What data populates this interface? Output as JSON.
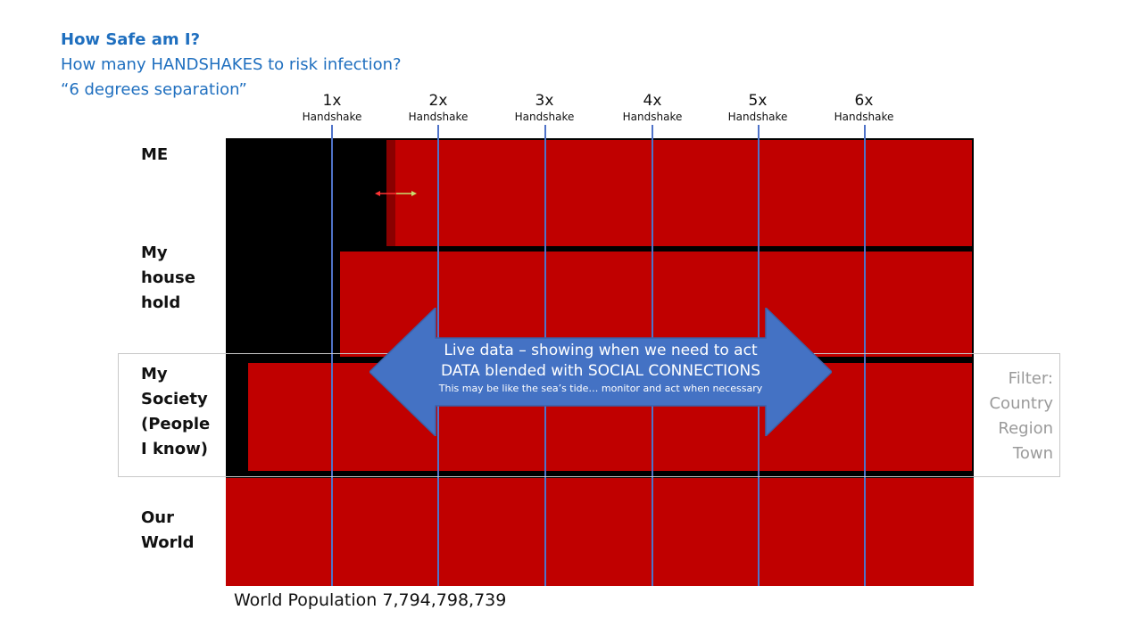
{
  "header": {
    "title": "How Safe am I?",
    "subtitle": "How many HANDSHAKES to risk infection?",
    "tagline": "“6 degrees separation”"
  },
  "columns": [
    {
      "num": "1x",
      "label": "Handshake"
    },
    {
      "num": "2x",
      "label": "Handshake"
    },
    {
      "num": "3x",
      "label": "Handshake"
    },
    {
      "num": "4x",
      "label": "Handshake"
    },
    {
      "num": "5x",
      "label": "Handshake"
    },
    {
      "num": "6x",
      "label": "Handshake"
    }
  ],
  "rows": {
    "me": [
      "ME"
    ],
    "household": [
      "My",
      "house",
      "hold"
    ],
    "society": [
      "My",
      "Society",
      "(People",
      "I know)"
    ],
    "world": [
      "Our",
      "World"
    ]
  },
  "arrow": {
    "line1": "Live data – showing when we need to act",
    "line2": "DATA blended with SOCIAL CONNECTIONS",
    "line3": "This may be like the sea’s tide… monitor and act when necessary"
  },
  "filter": [
    "Filter:",
    "Country",
    "Region",
    "Town"
  ],
  "footer": "World Population 7,794,798,739",
  "colors": {
    "header": "#1f6fbf",
    "block": "#c00000",
    "background": "#000000",
    "gridline": "#4f73c9",
    "arrow": "#4472c4",
    "filter_text": "#9a9a9a"
  }
}
